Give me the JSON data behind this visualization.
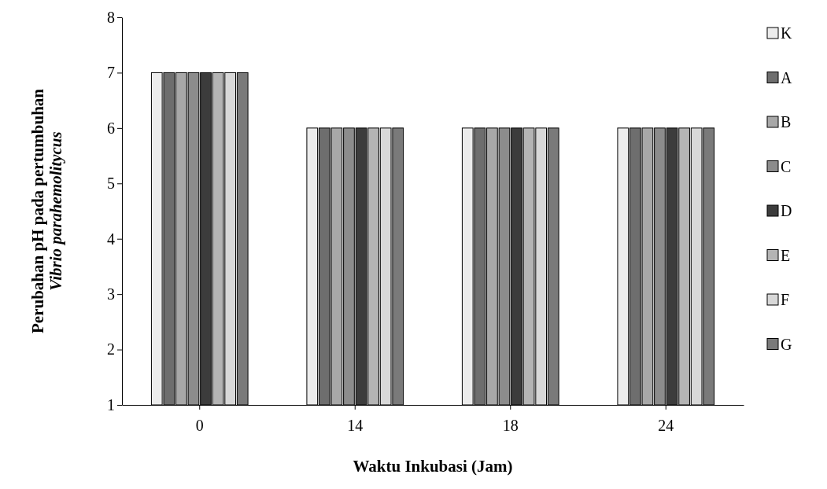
{
  "chart_data": {
    "type": "bar",
    "xlabel": "Waktu Inkubasi (Jam)",
    "ylabel": "Perubahan pH pada pertumbuhan\nVibrio parahemolitycus",
    "categories": [
      "0",
      "14",
      "18",
      "24"
    ],
    "series": [
      {
        "name": "K",
        "color": "#ececec",
        "values": [
          7,
          6,
          6,
          6
        ]
      },
      {
        "name": "A",
        "color": "#6e6e6e",
        "values": [
          7,
          6,
          6,
          6
        ]
      },
      {
        "name": "B",
        "color": "#a8a8a8",
        "values": [
          7,
          6,
          6,
          6
        ]
      },
      {
        "name": "C",
        "color": "#8c8c8c",
        "values": [
          7,
          6,
          6,
          6
        ]
      },
      {
        "name": "D",
        "color": "#3c3c3c",
        "values": [
          7,
          6,
          6,
          6
        ]
      },
      {
        "name": "E",
        "color": "#b4b4b4",
        "values": [
          7,
          6,
          6,
          6
        ]
      },
      {
        "name": "F",
        "color": "#d8d8d8",
        "values": [
          7,
          6,
          6,
          6
        ]
      },
      {
        "name": "G",
        "color": "#7a7a7a",
        "values": [
          7,
          6,
          6,
          6
        ]
      }
    ],
    "ylim": [
      1,
      8
    ],
    "yticks": [
      1,
      2,
      3,
      4,
      5,
      6,
      7,
      8
    ],
    "grid": false,
    "legend": "right"
  }
}
